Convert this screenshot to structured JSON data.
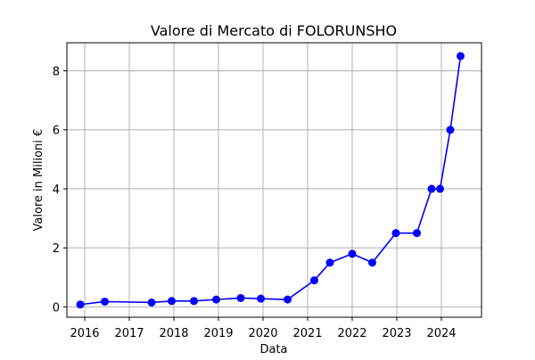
{
  "chart_data": {
    "type": "line",
    "title": "Valore di Mercato di FOLORUNSHO",
    "xlabel": "Data",
    "ylabel": "Valore in Milioni €",
    "xlim": [
      2015.6,
      2024.9
    ],
    "ylim": [
      -0.35,
      8.95
    ],
    "x_ticks": [
      2016,
      2017,
      2018,
      2019,
      2020,
      2021,
      2022,
      2023,
      2024
    ],
    "y_ticks": [
      0,
      2,
      4,
      6,
      8
    ],
    "grid": true,
    "series": [
      {
        "color": "#0000ff",
        "marker": "circle",
        "points": [
          {
            "x": 2015.9,
            "y": 0.08
          },
          {
            "x": 2016.45,
            "y": 0.18
          },
          {
            "x": 2017.5,
            "y": 0.15
          },
          {
            "x": 2017.95,
            "y": 0.2
          },
          {
            "x": 2018.45,
            "y": 0.2
          },
          {
            "x": 2018.95,
            "y": 0.25
          },
          {
            "x": 2019.5,
            "y": 0.3
          },
          {
            "x": 2019.95,
            "y": 0.28
          },
          {
            "x": 2020.55,
            "y": 0.25
          },
          {
            "x": 2021.15,
            "y": 0.9
          },
          {
            "x": 2021.5,
            "y": 1.5
          },
          {
            "x": 2022.0,
            "y": 1.8
          },
          {
            "x": 2022.45,
            "y": 1.5
          },
          {
            "x": 2022.98,
            "y": 2.5
          },
          {
            "x": 2023.45,
            "y": 2.5
          },
          {
            "x": 2023.78,
            "y": 4.0
          },
          {
            "x": 2023.97,
            "y": 4.0
          },
          {
            "x": 2024.2,
            "y": 6.0
          },
          {
            "x": 2024.43,
            "y": 8.5
          }
        ]
      }
    ]
  }
}
